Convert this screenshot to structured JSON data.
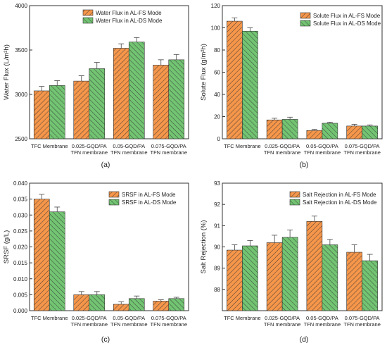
{
  "colors": {
    "orange": "#F5964A",
    "green": "#72C472",
    "hatch": "#333333",
    "errorbar": "#444444",
    "axis": "#333333"
  },
  "chart_data": [
    {
      "id": "a",
      "type": "bar",
      "panel_label": "(a)",
      "ylabel": "Water Flux (L/m²h)",
      "ylim": [
        2500,
        4000
      ],
      "yticks": [
        2500,
        3000,
        3500,
        4000
      ],
      "ytick_labels": [
        "2500",
        "3000",
        "3500",
        "4000"
      ],
      "categories": [
        [
          "TFC Membrane"
        ],
        [
          "0.025-GQD/PA",
          "TFN membrane"
        ],
        [
          "0.05-GQD/PA",
          "TFN membrane"
        ],
        [
          "0.075-GQD/PA",
          "TFN membrane"
        ]
      ],
      "legend_position": "top-left",
      "series": [
        {
          "name": "Water Flux in AL-FS Mode",
          "color": "orange",
          "values": [
            3040,
            3150,
            3520,
            3330
          ],
          "errors": [
            50,
            60,
            50,
            60
          ]
        },
        {
          "name": "Water Flux in AL-DS Mode",
          "color": "green",
          "values": [
            3100,
            3290,
            3590,
            3390
          ],
          "errors": [
            55,
            70,
            50,
            60
          ]
        }
      ]
    },
    {
      "id": "b",
      "type": "bar",
      "panel_label": "(b)",
      "ylabel": "Solute Flux (g/m²h)",
      "ylim": [
        0,
        120
      ],
      "yticks": [
        0,
        20,
        40,
        60,
        80,
        100,
        120
      ],
      "ytick_labels": [
        "0",
        "20",
        "40",
        "60",
        "80",
        "100",
        "120"
      ],
      "categories": [
        [
          "TFC Membrane"
        ],
        [
          "0.025-GQD/PA",
          "TFN membrane"
        ],
        [
          "0.05-GQD/PA",
          "TFN membrane"
        ],
        [
          "0.075-GQD/PA",
          "TFN membrane"
        ]
      ],
      "legend_position": "top-right",
      "series": [
        {
          "name": "Solute Flux in AL-FS Mode",
          "color": "orange",
          "values": [
            106,
            17,
            7.5,
            11.5
          ],
          "errors": [
            3,
            1.5,
            1,
            1.5
          ]
        },
        {
          "name": "Solute Flux in AL-DS Mode",
          "color": "green",
          "values": [
            97,
            17.5,
            14,
            11.5
          ],
          "errors": [
            3,
            2,
            1,
            1
          ]
        }
      ]
    },
    {
      "id": "c",
      "type": "bar",
      "panel_label": "(c)",
      "ylabel": "SRSF (g/L)",
      "ylim": [
        0,
        0.04
      ],
      "yticks": [
        0,
        0.005,
        0.01,
        0.015,
        0.02,
        0.025,
        0.03,
        0.035,
        0.04
      ],
      "ytick_labels": [
        "0.000",
        "0.005",
        "0.010",
        "0.015",
        "0.020",
        "0.025",
        "0.030",
        "0.035",
        "0.040"
      ],
      "categories": [
        [
          "TFC Membrane"
        ],
        [
          "0.025-GQD/PA",
          "TFN membrane"
        ],
        [
          "0.05-GQD/PA",
          "TFN membrane"
        ],
        [
          "0.075-GQD/PA",
          "TFN membrane"
        ]
      ],
      "legend_position": "top-right",
      "series": [
        {
          "name": "SRSF in AL-FS Mode",
          "color": "orange",
          "values": [
            0.035,
            0.005,
            0.002,
            0.003
          ],
          "errors": [
            0.0015,
            0.001,
            0.0008,
            0.0004
          ]
        },
        {
          "name": "SRSF in AL-DS Mode",
          "color": "green",
          "values": [
            0.031,
            0.005,
            0.0038,
            0.0038
          ],
          "errors": [
            0.0015,
            0.001,
            0.0008,
            0.0004
          ]
        }
      ]
    },
    {
      "id": "d",
      "type": "bar",
      "panel_label": "(d)",
      "ylabel": "Salt Rejection (%)",
      "ylim": [
        87,
        93
      ],
      "yticks": [
        88,
        89,
        90,
        91,
        92,
        93
      ],
      "ytick_labels": [
        "88",
        "89",
        "90",
        "91",
        "92",
        "93"
      ],
      "categories": [
        [
          "TFC Membrane"
        ],
        [
          "0.025-GQD/PA",
          "TFN membrane"
        ],
        [
          "0.05-GQD/PA",
          "TFN membrane"
        ],
        [
          "0.075-GQD/PA",
          "TFN membrane"
        ]
      ],
      "legend_position": "top-right",
      "series": [
        {
          "name": "Salt Rejection in AL-FS Mode",
          "color": "orange",
          "values": [
            89.85,
            90.2,
            91.2,
            89.75
          ],
          "errors": [
            0.25,
            0.35,
            0.25,
            0.35
          ]
        },
        {
          "name": "Salt Rejection in AL-DS Mode",
          "color": "green",
          "values": [
            90.05,
            90.45,
            90.1,
            89.35
          ],
          "errors": [
            0.25,
            0.35,
            0.25,
            0.3
          ]
        }
      ]
    }
  ]
}
